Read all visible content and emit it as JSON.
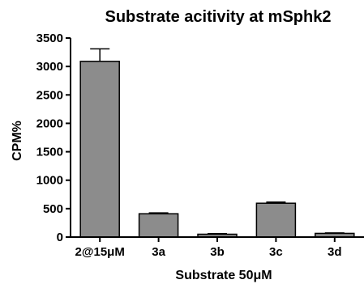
{
  "chart_data": {
    "type": "bar",
    "title": "Substrate acitivity at mSphk2",
    "xlabel": "Substrate 50μM",
    "ylabel": "CPM%",
    "ylim": [
      0,
      3500
    ],
    "yticks": [
      0,
      500,
      1000,
      1500,
      2000,
      2500,
      3000,
      3500
    ],
    "ytick_labels": [
      "0",
      "500",
      "1000",
      "1500",
      "2000",
      "2500",
      "3000",
      "3500"
    ],
    "categories": [
      "2@15μM",
      "3a",
      "3b",
      "3c",
      "3d"
    ],
    "values": [
      3090,
      410,
      50,
      595,
      65
    ],
    "errors": [
      220,
      15,
      10,
      20,
      8
    ],
    "grid": false,
    "legend": "none",
    "colors": {
      "bar_fill": "#8c8c8c",
      "bar_stroke": "#000000",
      "axis": "#000000"
    }
  }
}
